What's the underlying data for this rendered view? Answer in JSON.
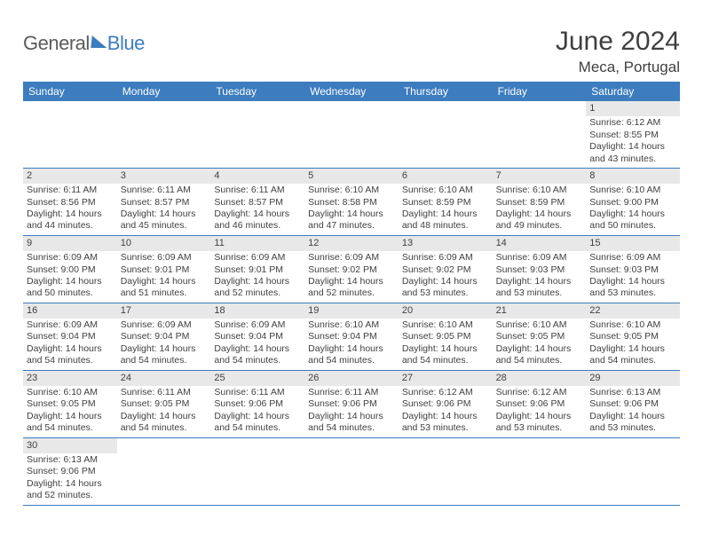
{
  "logo": {
    "part1": "General",
    "part2": "Blue"
  },
  "title": "June 2024",
  "location": "Meca, Portugal",
  "colors": {
    "header_bg": "#3c7cbf",
    "header_text": "#ffffff",
    "daynum_bg": "#e8e8e8",
    "text": "#414141",
    "rule": "#3c7cbf",
    "page_bg": "#ffffff"
  },
  "typography": {
    "title_fontsize": 30,
    "subtitle_fontsize": 17,
    "dow_fontsize": 12,
    "daynum_fontsize": 11,
    "body_fontsize": 10.5
  },
  "days_of_week": [
    "Sunday",
    "Monday",
    "Tuesday",
    "Wednesday",
    "Thursday",
    "Friday",
    "Saturday"
  ],
  "weeks": [
    [
      {
        "n": "",
        "sr": "",
        "ss": "",
        "dl": ""
      },
      {
        "n": "",
        "sr": "",
        "ss": "",
        "dl": ""
      },
      {
        "n": "",
        "sr": "",
        "ss": "",
        "dl": ""
      },
      {
        "n": "",
        "sr": "",
        "ss": "",
        "dl": ""
      },
      {
        "n": "",
        "sr": "",
        "ss": "",
        "dl": ""
      },
      {
        "n": "",
        "sr": "",
        "ss": "",
        "dl": ""
      },
      {
        "n": "1",
        "sr": "Sunrise: 6:12 AM",
        "ss": "Sunset: 8:55 PM",
        "dl": "Daylight: 14 hours and 43 minutes."
      }
    ],
    [
      {
        "n": "2",
        "sr": "Sunrise: 6:11 AM",
        "ss": "Sunset: 8:56 PM",
        "dl": "Daylight: 14 hours and 44 minutes."
      },
      {
        "n": "3",
        "sr": "Sunrise: 6:11 AM",
        "ss": "Sunset: 8:57 PM",
        "dl": "Daylight: 14 hours and 45 minutes."
      },
      {
        "n": "4",
        "sr": "Sunrise: 6:11 AM",
        "ss": "Sunset: 8:57 PM",
        "dl": "Daylight: 14 hours and 46 minutes."
      },
      {
        "n": "5",
        "sr": "Sunrise: 6:10 AM",
        "ss": "Sunset: 8:58 PM",
        "dl": "Daylight: 14 hours and 47 minutes."
      },
      {
        "n": "6",
        "sr": "Sunrise: 6:10 AM",
        "ss": "Sunset: 8:59 PM",
        "dl": "Daylight: 14 hours and 48 minutes."
      },
      {
        "n": "7",
        "sr": "Sunrise: 6:10 AM",
        "ss": "Sunset: 8:59 PM",
        "dl": "Daylight: 14 hours and 49 minutes."
      },
      {
        "n": "8",
        "sr": "Sunrise: 6:10 AM",
        "ss": "Sunset: 9:00 PM",
        "dl": "Daylight: 14 hours and 50 minutes."
      }
    ],
    [
      {
        "n": "9",
        "sr": "Sunrise: 6:09 AM",
        "ss": "Sunset: 9:00 PM",
        "dl": "Daylight: 14 hours and 50 minutes."
      },
      {
        "n": "10",
        "sr": "Sunrise: 6:09 AM",
        "ss": "Sunset: 9:01 PM",
        "dl": "Daylight: 14 hours and 51 minutes."
      },
      {
        "n": "11",
        "sr": "Sunrise: 6:09 AM",
        "ss": "Sunset: 9:01 PM",
        "dl": "Daylight: 14 hours and 52 minutes."
      },
      {
        "n": "12",
        "sr": "Sunrise: 6:09 AM",
        "ss": "Sunset: 9:02 PM",
        "dl": "Daylight: 14 hours and 52 minutes."
      },
      {
        "n": "13",
        "sr": "Sunrise: 6:09 AM",
        "ss": "Sunset: 9:02 PM",
        "dl": "Daylight: 14 hours and 53 minutes."
      },
      {
        "n": "14",
        "sr": "Sunrise: 6:09 AM",
        "ss": "Sunset: 9:03 PM",
        "dl": "Daylight: 14 hours and 53 minutes."
      },
      {
        "n": "15",
        "sr": "Sunrise: 6:09 AM",
        "ss": "Sunset: 9:03 PM",
        "dl": "Daylight: 14 hours and 53 minutes."
      }
    ],
    [
      {
        "n": "16",
        "sr": "Sunrise: 6:09 AM",
        "ss": "Sunset: 9:04 PM",
        "dl": "Daylight: 14 hours and 54 minutes."
      },
      {
        "n": "17",
        "sr": "Sunrise: 6:09 AM",
        "ss": "Sunset: 9:04 PM",
        "dl": "Daylight: 14 hours and 54 minutes."
      },
      {
        "n": "18",
        "sr": "Sunrise: 6:09 AM",
        "ss": "Sunset: 9:04 PM",
        "dl": "Daylight: 14 hours and 54 minutes."
      },
      {
        "n": "19",
        "sr": "Sunrise: 6:10 AM",
        "ss": "Sunset: 9:04 PM",
        "dl": "Daylight: 14 hours and 54 minutes."
      },
      {
        "n": "20",
        "sr": "Sunrise: 6:10 AM",
        "ss": "Sunset: 9:05 PM",
        "dl": "Daylight: 14 hours and 54 minutes."
      },
      {
        "n": "21",
        "sr": "Sunrise: 6:10 AM",
        "ss": "Sunset: 9:05 PM",
        "dl": "Daylight: 14 hours and 54 minutes."
      },
      {
        "n": "22",
        "sr": "Sunrise: 6:10 AM",
        "ss": "Sunset: 9:05 PM",
        "dl": "Daylight: 14 hours and 54 minutes."
      }
    ],
    [
      {
        "n": "23",
        "sr": "Sunrise: 6:10 AM",
        "ss": "Sunset: 9:05 PM",
        "dl": "Daylight: 14 hours and 54 minutes."
      },
      {
        "n": "24",
        "sr": "Sunrise: 6:11 AM",
        "ss": "Sunset: 9:05 PM",
        "dl": "Daylight: 14 hours and 54 minutes."
      },
      {
        "n": "25",
        "sr": "Sunrise: 6:11 AM",
        "ss": "Sunset: 9:06 PM",
        "dl": "Daylight: 14 hours and 54 minutes."
      },
      {
        "n": "26",
        "sr": "Sunrise: 6:11 AM",
        "ss": "Sunset: 9:06 PM",
        "dl": "Daylight: 14 hours and 54 minutes."
      },
      {
        "n": "27",
        "sr": "Sunrise: 6:12 AM",
        "ss": "Sunset: 9:06 PM",
        "dl": "Daylight: 14 hours and 53 minutes."
      },
      {
        "n": "28",
        "sr": "Sunrise: 6:12 AM",
        "ss": "Sunset: 9:06 PM",
        "dl": "Daylight: 14 hours and 53 minutes."
      },
      {
        "n": "29",
        "sr": "Sunrise: 6:13 AM",
        "ss": "Sunset: 9:06 PM",
        "dl": "Daylight: 14 hours and 53 minutes."
      }
    ],
    [
      {
        "n": "30",
        "sr": "Sunrise: 6:13 AM",
        "ss": "Sunset: 9:06 PM",
        "dl": "Daylight: 14 hours and 52 minutes."
      },
      {
        "n": "",
        "sr": "",
        "ss": "",
        "dl": ""
      },
      {
        "n": "",
        "sr": "",
        "ss": "",
        "dl": ""
      },
      {
        "n": "",
        "sr": "",
        "ss": "",
        "dl": ""
      },
      {
        "n": "",
        "sr": "",
        "ss": "",
        "dl": ""
      },
      {
        "n": "",
        "sr": "",
        "ss": "",
        "dl": ""
      },
      {
        "n": "",
        "sr": "",
        "ss": "",
        "dl": ""
      }
    ]
  ]
}
